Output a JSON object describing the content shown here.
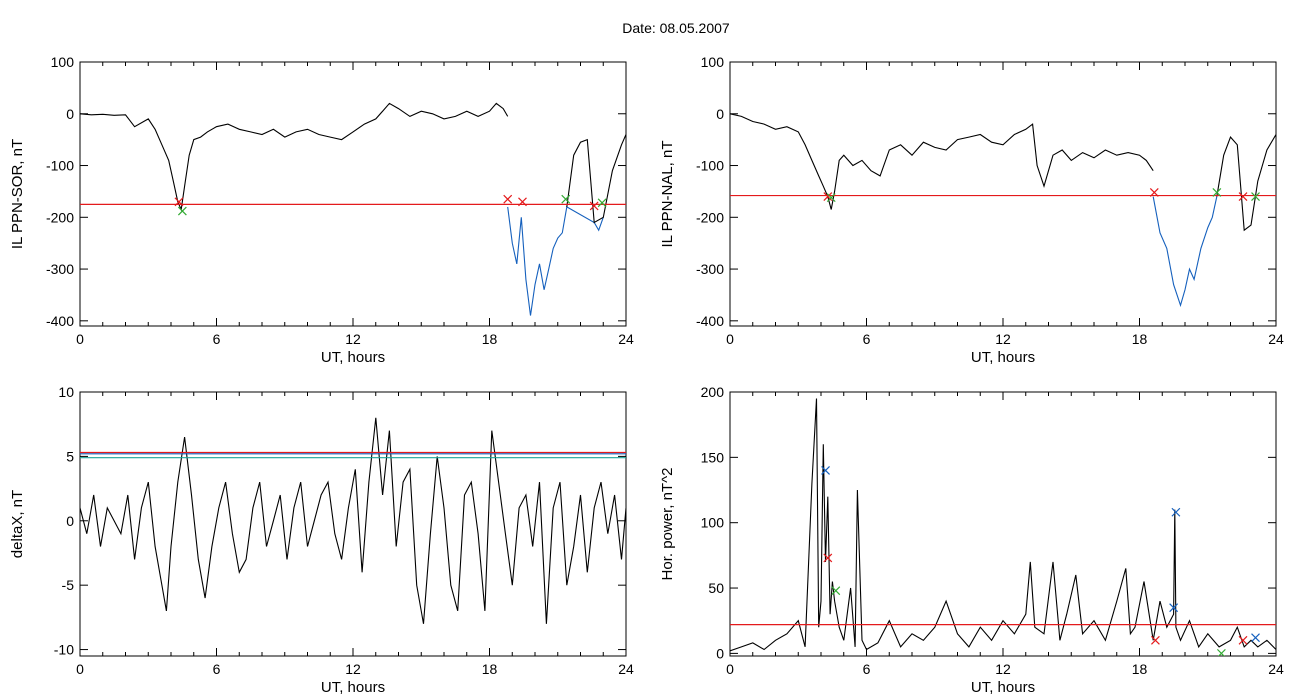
{
  "figure": {
    "title": "Date:  08.05.2007"
  },
  "chart_data": [
    {
      "type": "line",
      "xlabel": "UT, hours",
      "ylabel": "IL PPN-SOR, nT",
      "xlim": [
        0,
        24
      ],
      "ylim": [
        -410,
        100
      ],
      "xticks": [
        0,
        6,
        12,
        18,
        24
      ],
      "yticks": [
        100,
        0,
        -100,
        -200,
        -300,
        -400
      ],
      "threshold": {
        "value": -175,
        "color": "#e41a1c"
      },
      "colors": {
        "trace": "#000000",
        "highlight": "#1560bd"
      },
      "series": [
        {
          "role": "trace",
          "x": [
            0,
            0.5,
            1,
            1.5,
            2,
            2.4,
            2.8,
            3.0,
            3.3,
            3.6,
            3.9,
            4.1,
            4.3,
            4.45,
            4.6,
            4.8,
            5.0,
            5.3,
            5.6,
            6.0,
            6.5,
            7,
            7.5,
            8,
            8.5,
            9,
            9.5,
            10,
            10.5,
            11,
            11.5,
            12,
            12.5,
            13,
            13.3,
            13.6,
            14,
            14.5,
            15,
            15.5,
            16,
            16.5,
            17,
            17.5,
            18,
            18.3,
            18.6,
            18.8
          ],
          "y": [
            0,
            -2,
            -1,
            -3,
            -2,
            -25,
            -15,
            -10,
            -30,
            -60,
            -90,
            -130,
            -170,
            -185,
            -140,
            -80,
            -50,
            -45,
            -35,
            -25,
            -20,
            -30,
            -35,
            -40,
            -30,
            -45,
            -35,
            -30,
            -40,
            -45,
            -50,
            -35,
            -20,
            -10,
            5,
            20,
            10,
            -5,
            5,
            0,
            -10,
            -5,
            5,
            -5,
            5,
            20,
            10,
            -5
          ]
        },
        {
          "role": "highlight",
          "x": [
            18.8,
            19.0,
            19.2,
            19.4,
            19.6,
            19.8,
            20.0,
            20.2,
            20.4,
            20.6,
            20.8,
            21.0,
            21.2,
            21.4,
            22.6,
            22.8,
            23.0
          ],
          "y": [
            -180,
            -250,
            -290,
            -200,
            -320,
            -390,
            -330,
            -290,
            -340,
            -300,
            -260,
            -240,
            -230,
            -180,
            -210,
            -225,
            -200
          ]
        },
        {
          "role": "trace",
          "x": [
            21.4,
            21.7,
            22.0,
            22.3,
            22.6,
            23.0,
            23.4,
            23.8,
            24.0
          ],
          "y": [
            -180,
            -80,
            -55,
            -50,
            -210,
            -200,
            -110,
            -60,
            -40
          ]
        }
      ],
      "markers": {
        "crossings": [
          {
            "x": 4.35,
            "y": -170,
            "color": "#e41a1c"
          },
          {
            "x": 4.5,
            "y": -188,
            "color": "#33aa33"
          },
          {
            "x": 18.8,
            "y": -165,
            "color": "#e41a1c"
          },
          {
            "x": 19.45,
            "y": -170,
            "color": "#e41a1c"
          },
          {
            "x": 21.35,
            "y": -165,
            "color": "#33aa33"
          },
          {
            "x": 22.6,
            "y": -178,
            "color": "#e41a1c"
          },
          {
            "x": 22.95,
            "y": -172,
            "color": "#33aa33"
          }
        ]
      }
    },
    {
      "type": "line",
      "xlabel": "UT, hours",
      "ylabel": "IL PPN-NAL, nT",
      "xlim": [
        0,
        24
      ],
      "ylim": [
        -410,
        100
      ],
      "xticks": [
        0,
        6,
        12,
        18,
        24
      ],
      "yticks": [
        100,
        0,
        -100,
        -200,
        -300,
        -400
      ],
      "threshold": {
        "value": -158,
        "color": "#e41a1c"
      },
      "colors": {
        "trace": "#000000",
        "highlight": "#1560bd"
      },
      "series": [
        {
          "role": "trace",
          "x": [
            0,
            0.5,
            1,
            1.5,
            2,
            2.5,
            3,
            3.3,
            3.6,
            3.9,
            4.1,
            4.3,
            4.45,
            4.6,
            4.8,
            5.0,
            5.4,
            5.8,
            6.2,
            6.6,
            7,
            7.5,
            8,
            8.5,
            9,
            9.5,
            10,
            10.5,
            11,
            11.5,
            12,
            12.5,
            13,
            13.3,
            13.5,
            13.8,
            14.2,
            14.6,
            15,
            15.5,
            16,
            16.5,
            17,
            17.5,
            18,
            18.3,
            18.6
          ],
          "y": [
            0,
            -5,
            -15,
            -20,
            -30,
            -25,
            -35,
            -60,
            -90,
            -120,
            -140,
            -160,
            -185,
            -150,
            -90,
            -80,
            -100,
            -90,
            -110,
            -120,
            -70,
            -60,
            -80,
            -55,
            -65,
            -70,
            -50,
            -45,
            -40,
            -55,
            -60,
            -40,
            -30,
            -20,
            -100,
            -140,
            -80,
            -70,
            -90,
            -75,
            -85,
            -70,
            -80,
            -75,
            -80,
            -90,
            -110
          ]
        },
        {
          "role": "highlight",
          "x": [
            18.6,
            18.9,
            19.2,
            19.5,
            19.8,
            20.0,
            20.2,
            20.4,
            20.7,
            21.0,
            21.2,
            21.4
          ],
          "y": [
            -160,
            -230,
            -260,
            -330,
            -370,
            -340,
            -300,
            -320,
            -260,
            -220,
            -200,
            -160
          ]
        },
        {
          "role": "trace",
          "x": [
            21.4,
            21.7,
            22.0,
            22.3,
            22.6,
            22.9,
            23.2,
            23.6,
            24.0
          ],
          "y": [
            -160,
            -80,
            -45,
            -60,
            -225,
            -215,
            -130,
            -70,
            -40
          ]
        }
      ],
      "markers": {
        "crossings": [
          {
            "x": 4.3,
            "y": -160,
            "color": "#e41a1c"
          },
          {
            "x": 4.45,
            "y": -162,
            "color": "#33aa33"
          },
          {
            "x": 18.65,
            "y": -152,
            "color": "#e41a1c"
          },
          {
            "x": 21.4,
            "y": -152,
            "color": "#33aa33"
          },
          {
            "x": 22.55,
            "y": -160,
            "color": "#e41a1c"
          },
          {
            "x": 23.1,
            "y": -160,
            "color": "#33aa33"
          }
        ]
      }
    },
    {
      "type": "line",
      "xlabel": "UT, hours",
      "ylabel": "deltaX, nT",
      "xlim": [
        0,
        24
      ],
      "ylim": [
        -10.5,
        10
      ],
      "xticks": [
        0,
        6,
        12,
        18,
        24
      ],
      "yticks": [
        10,
        5,
        0,
        -5,
        -10
      ],
      "thresholds": [
        {
          "value": 5.3,
          "color": "#e41a1c"
        },
        {
          "value": 5.2,
          "color": "#1560bd"
        },
        {
          "value": 4.9,
          "color": "#1aa59a"
        }
      ],
      "series": [
        {
          "role": "trace",
          "x": [
            0,
            0.3,
            0.6,
            0.9,
            1.2,
            1.5,
            1.8,
            2.1,
            2.4,
            2.7,
            3.0,
            3.3,
            3.6,
            3.8,
            4.0,
            4.3,
            4.6,
            4.9,
            5.2,
            5.5,
            5.8,
            6.1,
            6.4,
            6.7,
            7.0,
            7.3,
            7.6,
            7.9,
            8.2,
            8.5,
            8.8,
            9.1,
            9.4,
            9.7,
            10.0,
            10.3,
            10.6,
            10.9,
            11.2,
            11.5,
            11.8,
            12.1,
            12.4,
            12.7,
            13.0,
            13.3,
            13.6,
            13.9,
            14.2,
            14.5,
            14.8,
            15.1,
            15.4,
            15.7,
            16.0,
            16.3,
            16.6,
            16.9,
            17.2,
            17.5,
            17.8,
            18.1,
            18.4,
            18.7,
            19.0,
            19.3,
            19.6,
            19.9,
            20.2,
            20.5,
            20.8,
            21.1,
            21.4,
            21.7,
            22.0,
            22.3,
            22.6,
            22.9,
            23.2,
            23.5,
            23.8,
            24.0
          ],
          "y": [
            1,
            -1,
            2,
            -2,
            1,
            0,
            -1,
            2,
            -3,
            1,
            3,
            -2,
            -5,
            -7,
            -2,
            3,
            6.5,
            2,
            -3,
            -6,
            -2,
            1,
            3,
            -1,
            -4,
            -3,
            1,
            3,
            -2,
            0,
            2,
            -3,
            1,
            3,
            -2,
            0,
            2,
            3,
            -1,
            -3,
            1,
            4,
            -4,
            3,
            8,
            2,
            7,
            -2,
            3,
            4,
            -5,
            -8,
            -1,
            5,
            1,
            -5,
            -7,
            2,
            3,
            -1,
            -7,
            7,
            3,
            -1,
            -5,
            1,
            2,
            -2,
            3,
            -8,
            1,
            3,
            -5,
            -2,
            2,
            -4,
            1,
            3,
            -1,
            2,
            -3,
            1
          ]
        }
      ]
    },
    {
      "type": "line",
      "xlabel": "UT, hours",
      "ylabel": "Hor. power, nT^2",
      "xlim": [
        0,
        24
      ],
      "ylim": [
        -2,
        200
      ],
      "xticks": [
        0,
        6,
        12,
        18,
        24
      ],
      "yticks": [
        200,
        150,
        100,
        50,
        0
      ],
      "threshold": {
        "value": 22,
        "color": "#e41a1c"
      },
      "series": [
        {
          "role": "trace",
          "x": [
            0,
            0.5,
            1,
            1.5,
            2,
            2.5,
            3,
            3.3,
            3.6,
            3.8,
            3.9,
            4.0,
            4.1,
            4.2,
            4.3,
            4.4,
            4.5,
            4.6,
            4.8,
            5.0,
            5.3,
            5.5,
            5.6,
            5.8,
            6,
            6.5,
            7,
            7.5,
            8,
            8.5,
            9,
            9.5,
            10,
            10.5,
            11,
            11.5,
            12,
            12.5,
            13,
            13.2,
            13.4,
            13.8,
            14.2,
            14.5,
            14.8,
            15.2,
            15.5,
            16,
            16.5,
            17,
            17.4,
            17.6,
            17.8,
            18.2,
            18.6,
            18.9,
            19.2,
            19.5,
            19.55,
            19.6,
            19.8,
            20.2,
            20.6,
            21,
            21.5,
            22,
            22.3,
            22.6,
            22.9,
            23.2,
            23.6,
            24.0
          ],
          "y": [
            2,
            5,
            8,
            3,
            10,
            15,
            25,
            5,
            130,
            195,
            20,
            40,
            160,
            70,
            120,
            30,
            55,
            40,
            20,
            10,
            50,
            5,
            125,
            10,
            3,
            8,
            25,
            5,
            15,
            10,
            20,
            40,
            15,
            5,
            20,
            10,
            25,
            15,
            30,
            70,
            20,
            15,
            70,
            10,
            30,
            60,
            15,
            25,
            10,
            40,
            65,
            15,
            20,
            55,
            10,
            40,
            20,
            30,
            110,
            20,
            10,
            25,
            5,
            15,
            5,
            10,
            20,
            5,
            10,
            5,
            10,
            3
          ]
        }
      ],
      "markers": {
        "crossings": [
          {
            "x": 4.2,
            "y": 140,
            "color": "#1560bd"
          },
          {
            "x": 4.3,
            "y": 73,
            "color": "#e41a1c"
          },
          {
            "x": 4.65,
            "y": 48,
            "color": "#33aa33"
          },
          {
            "x": 18.7,
            "y": 10,
            "color": "#e41a1c"
          },
          {
            "x": 19.5,
            "y": 35,
            "color": "#1560bd"
          },
          {
            "x": 19.6,
            "y": 108,
            "color": "#1560bd"
          },
          {
            "x": 21.6,
            "y": 0,
            "color": "#33aa33"
          },
          {
            "x": 22.55,
            "y": 10,
            "color": "#e41a1c"
          },
          {
            "x": 23.1,
            "y": 12,
            "color": "#1560bd"
          }
        ]
      }
    }
  ]
}
